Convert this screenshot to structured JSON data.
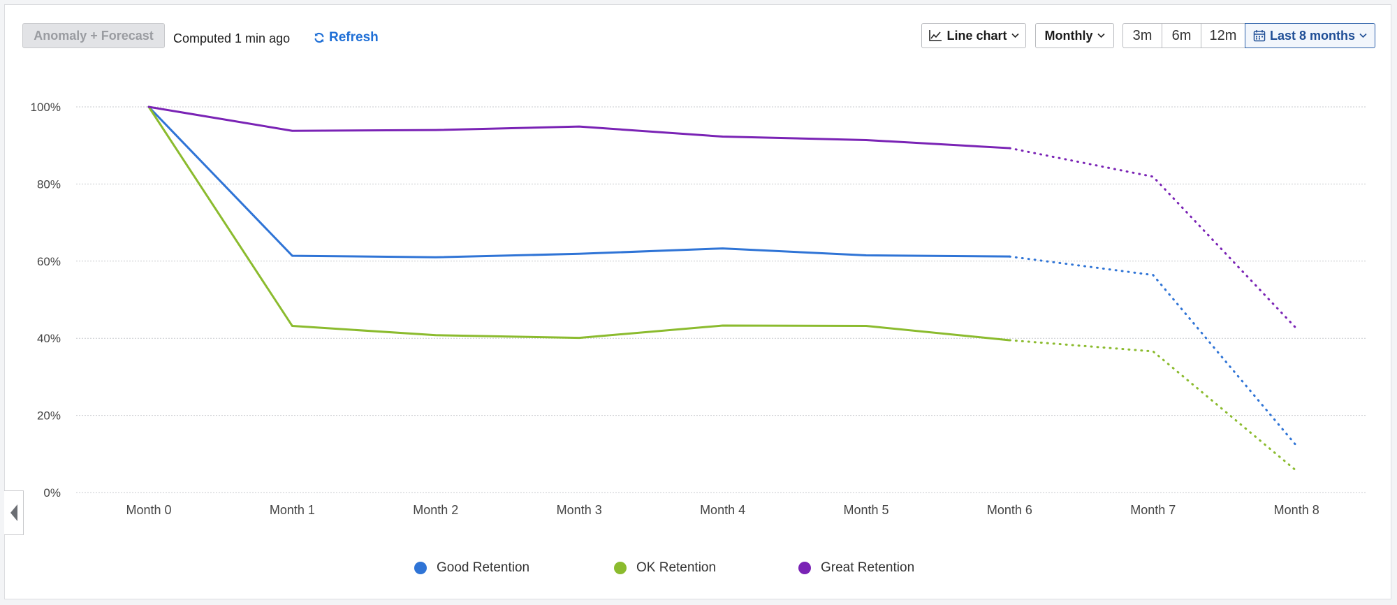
{
  "toolbar": {
    "mode_label": "Anomaly + Forecast",
    "computed_text": "Computed 1 min ago",
    "refresh_label": "Refresh",
    "chart_type_label": "Line chart",
    "interval_label": "Monthly",
    "range_buttons": [
      "3m",
      "6m",
      "12m"
    ],
    "date_range_label": "Last 8 months"
  },
  "colors": {
    "good": "#2f74d6",
    "ok": "#8bbb2e",
    "great": "#7a23b5",
    "grid": "#c9cbcf",
    "accent": "#1f6fd6"
  },
  "icons": [
    "refresh-icon",
    "line-chart-icon",
    "chevron-down-icon",
    "calendar-icon",
    "chevron-left-icon"
  ],
  "chart_data": {
    "type": "line",
    "x": [
      "Month 0",
      "Month 1",
      "Month 2",
      "Month 3",
      "Month 4",
      "Month 5",
      "Month 6",
      "Month 7",
      "Month 8"
    ],
    "ylim": [
      0,
      100
    ],
    "yticks": [
      0,
      20,
      40,
      60,
      80,
      100
    ],
    "ytick_labels": [
      "0%",
      "20%",
      "40%",
      "60%",
      "80%",
      "100%"
    ],
    "forecast_start_index": 6,
    "grid": true,
    "legend_position": "bottom",
    "series": [
      {
        "name": "Good Retention",
        "values": [
          100,
          61.4,
          61,
          61.9,
          63.3,
          61.5,
          61.2,
          56.4,
          12.1
        ]
      },
      {
        "name": "OK Retention",
        "values": [
          100,
          43.2,
          40.8,
          40.1,
          43.3,
          43.2,
          39.5,
          36.6,
          5.6
        ]
      },
      {
        "name": "Great Retention",
        "values": [
          100,
          93.8,
          94,
          94.9,
          92.3,
          91.4,
          89.3,
          81.9,
          42.5
        ]
      }
    ]
  }
}
